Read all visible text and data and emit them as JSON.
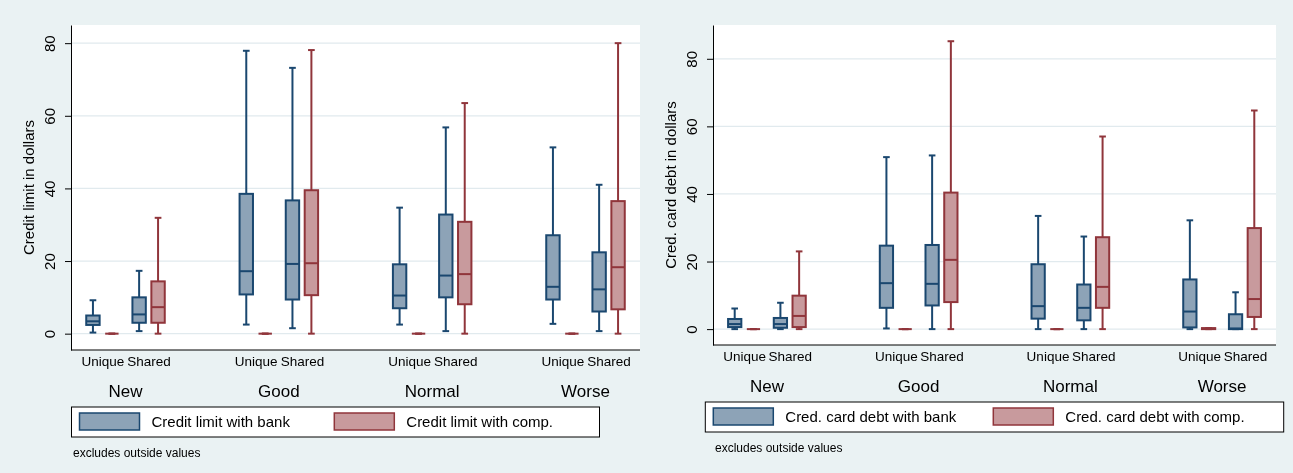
{
  "chart_data": [
    {
      "type": "box",
      "ylabel": "Credit limit in dollars",
      "categories": [
        "Unique",
        "Shared",
        "Unique",
        "Shared",
        "Unique",
        "Shared",
        "Unique",
        "Shared"
      ],
      "ylim": [
        -4.5,
        85
      ],
      "yticks": [
        0,
        20,
        40,
        60,
        80
      ],
      "grid": "y",
      "legend": "bottom",
      "annotations": [
        "New",
        "Good",
        "Normal",
        "Worse",
        "excludes outside values"
      ],
      "series": [
        {
          "name": "Credit limit with bank",
          "color": "#1a476f",
          "boxes": [
            {
              "low": 0.3,
              "q1": 2.4,
              "median": 3.4,
              "q3": 5.0,
              "high": 9.2
            },
            {
              "low": 0.7,
              "q1": 3.0,
              "median": 5.3,
              "q3": 10.0,
              "high": 17.3
            },
            {
              "low": 2.5,
              "q1": 10.8,
              "median": 17.2,
              "q3": 38.5,
              "high": 77.9
            },
            {
              "low": 1.5,
              "q1": 9.4,
              "median": 19.2,
              "q3": 36.7,
              "high": 73.2
            },
            {
              "low": 2.5,
              "q1": 7.0,
              "median": 10.5,
              "q3": 19.1,
              "high": 34.7
            },
            {
              "low": 0.7,
              "q1": 10.0,
              "median": 16.0,
              "q3": 32.8,
              "high": 56.8
            },
            {
              "low": 2.7,
              "q1": 9.4,
              "median": 12.9,
              "q3": 27.1,
              "high": 51.3
            },
            {
              "low": 0.7,
              "q1": 6.1,
              "median": 12.2,
              "q3": 22.4,
              "high": 41.0
            }
          ]
        },
        {
          "name": "Credit limit with comp.",
          "color": "#90353b",
          "boxes": [
            {
              "low": 0,
              "q1": 0,
              "median": 0,
              "q3": 0,
              "high": 0
            },
            {
              "low": 0,
              "q1": 3.0,
              "median": 7.3,
              "q3": 14.4,
              "high": 31.9
            },
            {
              "low": 0,
              "q1": 0,
              "median": 0,
              "q3": 0,
              "high": 0
            },
            {
              "low": 0,
              "q1": 10.6,
              "median": 19.4,
              "q3": 39.5,
              "high": 78.1
            },
            {
              "low": 0,
              "q1": 0,
              "median": 0,
              "q3": 0,
              "high": 0
            },
            {
              "low": 0,
              "q1": 8.1,
              "median": 16.4,
              "q3": 30.8,
              "high": 63.5
            },
            {
              "low": 0,
              "q1": 0,
              "median": 0,
              "q3": 0,
              "high": 0
            },
            {
              "low": 0,
              "q1": 6.7,
              "median": 18.3,
              "q3": 36.5,
              "high": 80.0
            }
          ]
        }
      ]
    },
    {
      "type": "box",
      "ylabel": "Cred. card debt in dollars",
      "categories": [
        "Unique",
        "Shared",
        "Unique",
        "Shared",
        "Unique",
        "Shared",
        "Unique",
        "Shared"
      ],
      "ylim": [
        -4.7,
        90
      ],
      "yticks": [
        0,
        20,
        40,
        60,
        80
      ],
      "grid": "y",
      "legend": "bottom",
      "annotations": [
        "New",
        "Good",
        "Normal",
        "Worse",
        "excludes outside values"
      ],
      "series": [
        {
          "name": "Cred. card debt with bank",
          "color": "#1a476f",
          "boxes": [
            {
              "low": 0,
              "q1": 0.6,
              "median": 1.5,
              "q3": 3.0,
              "high": 6.1
            },
            {
              "low": 0,
              "q1": 0.4,
              "median": 1.5,
              "q3": 3.3,
              "high": 7.8
            },
            {
              "low": 0.2,
              "q1": 6.3,
              "median": 13.6,
              "q3": 24.7,
              "high": 50.9
            },
            {
              "low": 0,
              "q1": 7.0,
              "median": 13.4,
              "q3": 24.9,
              "high": 51.4
            },
            {
              "low": 0,
              "q1": 3.1,
              "median": 6.8,
              "q3": 19.2,
              "high": 33.5
            },
            {
              "low": 0,
              "q1": 2.6,
              "median": 6.3,
              "q3": 13.2,
              "high": 27.4
            },
            {
              "low": 0,
              "q1": 0.5,
              "median": 5.2,
              "q3": 14.7,
              "high": 32.2
            },
            {
              "low": 0,
              "q1": 0,
              "median": 0.2,
              "q3": 4.4,
              "high": 10.9
            }
          ]
        },
        {
          "name": "Cred. card debt with comp.",
          "color": "#90353b",
          "boxes": [
            {
              "low": 0,
              "q1": 0,
              "median": 0,
              "q3": 0,
              "high": 0
            },
            {
              "low": 0,
              "q1": 0.6,
              "median": 3.9,
              "q3": 9.9,
              "high": 23.0
            },
            {
              "low": 0,
              "q1": 0,
              "median": 0,
              "q3": 0,
              "high": 0
            },
            {
              "low": 0,
              "q1": 8.0,
              "median": 20.5,
              "q3": 40.4,
              "high": 85.2
            },
            {
              "low": 0,
              "q1": 0,
              "median": 0,
              "q3": 0,
              "high": 0
            },
            {
              "low": 0,
              "q1": 6.3,
              "median": 12.5,
              "q3": 27.2,
              "high": 57.0
            },
            {
              "low": 0,
              "q1": 0,
              "median": 0.1,
              "q3": 0.3,
              "high": 0.3
            },
            {
              "low": 0,
              "q1": 3.6,
              "median": 8.9,
              "q3": 29.9,
              "high": 64.7
            }
          ]
        }
      ]
    }
  ]
}
